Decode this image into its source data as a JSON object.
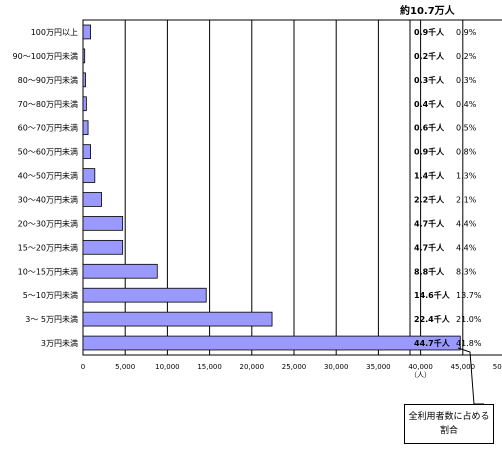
{
  "chart_data": {
    "type": "bar",
    "orientation": "horizontal",
    "total_label": "約10.7万人",
    "x_unit": "（人）",
    "xlim": [
      0,
      50000
    ],
    "x_ticks": [
      0,
      5000,
      10000,
      15000,
      20000,
      25000,
      30000,
      35000,
      40000,
      45000,
      50000
    ],
    "x_tick_labels": [
      "0",
      "5,000",
      "10,000",
      "15,000",
      "20,000",
      "25,000",
      "30,000",
      "35,000",
      "40,000",
      "45,000",
      "50,000"
    ],
    "bar_color": "#9999ff",
    "categories": [
      "100万円以上",
      "90～100万円未満",
      "80～90万円未満",
      "70～80万円未満",
      "60～70万円未満",
      "50～60万円未満",
      "40～50万円未満",
      "30～40万円未満",
      "20～30万円未満",
      "15～20万円未満",
      "10～15万円未満",
      "5～10万円未満",
      "3～ 5万円未満",
      "3万円未満"
    ],
    "values": [
      900,
      200,
      300,
      400,
      600,
      900,
      1400,
      2200,
      4700,
      4700,
      8800,
      14600,
      22400,
      44700
    ],
    "value_labels": [
      "0.9千人",
      "0.2千人",
      "0.3千人",
      "0.4千人",
      "0.6千人",
      "0.9千人",
      "1.4千人",
      "2.2千人",
      "4.7千人",
      "4.7千人",
      "8.8千人",
      "14.6千人",
      "22.4千人",
      "44.7千人"
    ],
    "share_labels": [
      "0.9%",
      "0.2%",
      "0.3%",
      "0.4%",
      "0.5%",
      "0.8%",
      "1.3%",
      "2.1%",
      "4.4%",
      "4.4%",
      "8.3%",
      "13.7%",
      "21.0%",
      "41.8%"
    ],
    "callout": "全利用者数に占める割合",
    "grid": true
  }
}
